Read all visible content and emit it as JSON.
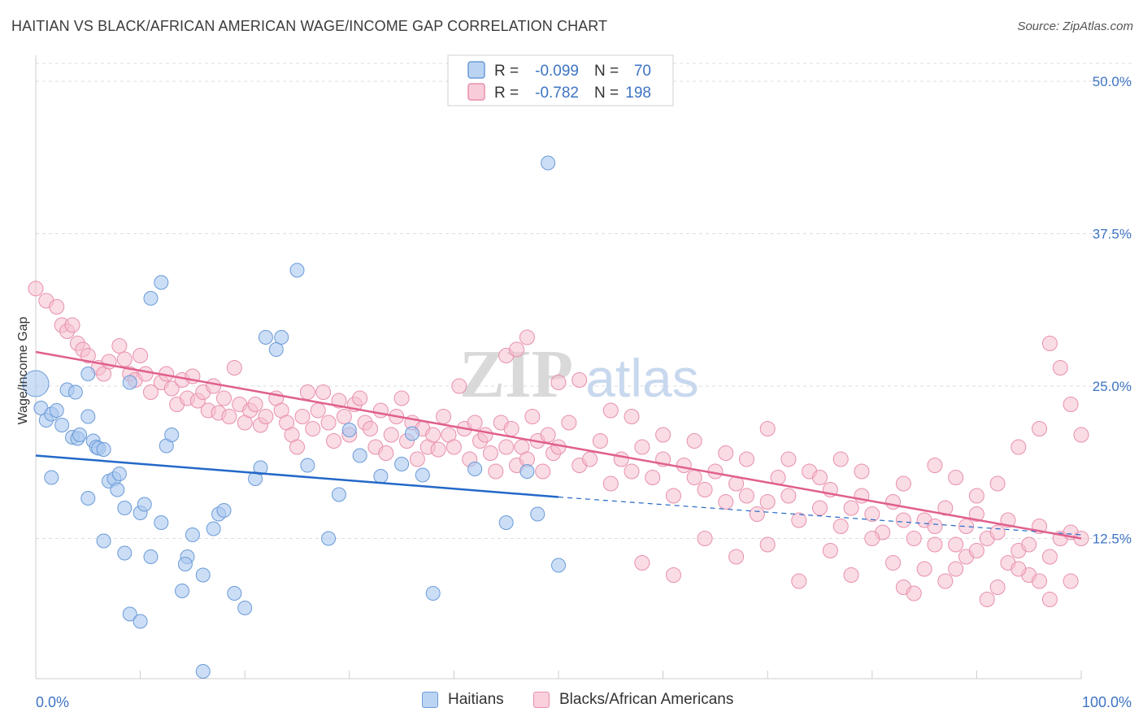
{
  "header": {
    "title": "HAITIAN VS BLACK/AFRICAN AMERICAN WAGE/INCOME GAP CORRELATION CHART",
    "source": "Source: ZipAtlas.com"
  },
  "watermark": {
    "zip": "ZIP",
    "atlas": "atlas"
  },
  "legend_top": {
    "rows": [
      {
        "r_label": "R =",
        "r_value": "-0.099",
        "n_label": "N =",
        "n_value": "70"
      },
      {
        "r_label": "R =",
        "r_value": "-0.782",
        "n_label": "N =",
        "n_value": "198"
      }
    ]
  },
  "legend_bottom": {
    "items": [
      "Haitians",
      "Blacks/African Americans"
    ]
  },
  "chart_data": {
    "type": "scatter",
    "title": "HAITIAN VS BLACK/AFRICAN AMERICAN WAGE/INCOME GAP CORRELATION CHART",
    "xlabel": "",
    "ylabel": "Wage/Income Gap",
    "xlim": [
      0,
      100
    ],
    "ylim": [
      1,
      52
    ],
    "x_tick_labels": [
      {
        "value": 0,
        "label": "0.0%"
      },
      {
        "value": 100,
        "label": "100.0%"
      }
    ],
    "y_ticks": [
      {
        "value": 12.5,
        "label": "12.5%"
      },
      {
        "value": 25.0,
        "label": "25.0%"
      },
      {
        "value": 37.5,
        "label": "37.5%"
      },
      {
        "value": 50.0,
        "label": "50.0%"
      }
    ],
    "grid": true,
    "legend_position": "top-center",
    "colors": {
      "haitians_fill": "#aac8f0",
      "haitians_stroke": "#6a9bd8",
      "haitians_line": "#2468c8",
      "blacks_fill": "#f6bfd0",
      "blacks_stroke": "#e890ac",
      "blacks_line": "#e0608c",
      "tick_label": "#3e74c4",
      "grid": "#dddddd",
      "axis": "#cccccc"
    },
    "series": [
      {
        "name": "Haitians",
        "R": -0.099,
        "N": 70,
        "trend": {
          "x0": 0,
          "y0": 19.3,
          "x1": 50,
          "y1": 15.9,
          "dashed_to_x": 100,
          "dashed_to_y": 12.8
        },
        "points": [
          [
            0,
            25.2
          ],
          [
            0.5,
            23.2
          ],
          [
            1,
            22.2
          ],
          [
            1.5,
            22.7
          ],
          [
            2,
            23.0
          ],
          [
            2.5,
            21.8
          ],
          [
            3,
            24.7
          ],
          [
            3.5,
            20.8
          ],
          [
            3.8,
            24.5
          ],
          [
            4,
            20.7
          ],
          [
            4.2,
            21.0
          ],
          [
            5,
            22.5
          ],
          [
            5,
            26.0
          ],
          [
            5.5,
            20.5
          ],
          [
            5.8,
            20.0
          ],
          [
            6,
            19.9
          ],
          [
            6.5,
            19.8
          ],
          [
            1.5,
            17.5
          ],
          [
            5,
            15.8
          ],
          [
            7,
            17.2
          ],
          [
            7.5,
            17.4
          ],
          [
            7.8,
            16.5
          ],
          [
            8,
            17.8
          ],
          [
            8.5,
            15.0
          ],
          [
            9,
            25.3
          ],
          [
            10,
            14.6
          ],
          [
            10.4,
            15.3
          ],
          [
            11,
            11.0
          ],
          [
            12,
            13.8
          ],
          [
            12.5,
            20.1
          ],
          [
            13,
            21.0
          ],
          [
            14,
            8.2
          ],
          [
            14.5,
            11.0
          ],
          [
            15,
            12.8
          ],
          [
            16,
            9.5
          ],
          [
            17,
            13.3
          ],
          [
            17.5,
            14.5
          ],
          [
            18,
            14.8
          ],
          [
            19,
            8.0
          ],
          [
            20,
            6.8
          ],
          [
            21,
            17.4
          ],
          [
            21.5,
            18.3
          ],
          [
            22,
            29.0
          ],
          [
            23,
            28.0
          ],
          [
            23.5,
            29.0
          ],
          [
            25,
            34.5
          ],
          [
            26,
            18.5
          ],
          [
            28,
            12.5
          ],
          [
            29,
            16.1
          ],
          [
            30,
            21.4
          ],
          [
            31,
            19.3
          ],
          [
            33,
            17.6
          ],
          [
            35,
            18.6
          ],
          [
            36,
            21.1
          ],
          [
            37,
            17.7
          ],
          [
            38,
            8.0
          ],
          [
            42,
            18.2
          ],
          [
            45,
            13.8
          ],
          [
            47,
            18.0
          ],
          [
            48,
            14.5
          ],
          [
            49,
            43.3
          ],
          [
            50,
            10.3
          ],
          [
            9,
            6.3
          ],
          [
            10,
            5.7
          ],
          [
            16,
            1.6
          ],
          [
            11,
            32.2
          ],
          [
            12,
            33.5
          ],
          [
            6.5,
            12.3
          ],
          [
            8.5,
            11.3
          ],
          [
            14.3,
            10.4
          ]
        ]
      },
      {
        "name": "Blacks/African Americans",
        "R": -0.782,
        "N": 198,
        "trend": {
          "x0": 0,
          "y0": 27.8,
          "x1": 100,
          "y1": 12.5
        },
        "points": [
          [
            0,
            33.0
          ],
          [
            1,
            32.0
          ],
          [
            2,
            31.5
          ],
          [
            2.5,
            30.0
          ],
          [
            3,
            29.5
          ],
          [
            3.5,
            30.0
          ],
          [
            4,
            28.5
          ],
          [
            4.5,
            28.0
          ],
          [
            5,
            27.5
          ],
          [
            6,
            26.5
          ],
          [
            6.5,
            26.0
          ],
          [
            7,
            27.0
          ],
          [
            8,
            28.3
          ],
          [
            8.5,
            27.2
          ],
          [
            9,
            26.0
          ],
          [
            9.5,
            25.5
          ],
          [
            10,
            27.5
          ],
          [
            10.5,
            26.0
          ],
          [
            11,
            24.5
          ],
          [
            12,
            25.3
          ],
          [
            12.5,
            26.0
          ],
          [
            13,
            24.8
          ],
          [
            13.5,
            23.5
          ],
          [
            14,
            25.5
          ],
          [
            14.5,
            24.0
          ],
          [
            15,
            25.8
          ],
          [
            15.5,
            23.8
          ],
          [
            16,
            24.5
          ],
          [
            16.5,
            23.0
          ],
          [
            17,
            25.0
          ],
          [
            17.5,
            22.8
          ],
          [
            18,
            24.0
          ],
          [
            18.5,
            22.5
          ],
          [
            19,
            26.5
          ],
          [
            19.5,
            23.5
          ],
          [
            20,
            22.0
          ],
          [
            20.5,
            23.0
          ],
          [
            21,
            23.5
          ],
          [
            21.5,
            21.8
          ],
          [
            22,
            22.5
          ],
          [
            23,
            24.0
          ],
          [
            23.5,
            23.0
          ],
          [
            24,
            22.0
          ],
          [
            24.5,
            21.0
          ],
          [
            25,
            20.0
          ],
          [
            25.5,
            22.5
          ],
          [
            26,
            24.5
          ],
          [
            26.5,
            21.5
          ],
          [
            27,
            23.0
          ],
          [
            27.5,
            24.5
          ],
          [
            28,
            22.0
          ],
          [
            28.5,
            20.5
          ],
          [
            29,
            23.8
          ],
          [
            29.5,
            22.5
          ],
          [
            30,
            21.0
          ],
          [
            30.5,
            23.5
          ],
          [
            31,
            24.0
          ],
          [
            31.5,
            22.0
          ],
          [
            32,
            21.5
          ],
          [
            32.5,
            20.0
          ],
          [
            33,
            23.0
          ],
          [
            33.5,
            19.5
          ],
          [
            34,
            21.0
          ],
          [
            34.5,
            22.5
          ],
          [
            35,
            24.0
          ],
          [
            35.5,
            20.5
          ],
          [
            36,
            22.0
          ],
          [
            36.5,
            19.0
          ],
          [
            37,
            21.5
          ],
          [
            37.5,
            20.0
          ],
          [
            38,
            21.0
          ],
          [
            38.5,
            19.8
          ],
          [
            39,
            22.5
          ],
          [
            39.5,
            21.0
          ],
          [
            40,
            20.0
          ],
          [
            40.5,
            25.0
          ],
          [
            41,
            21.5
          ],
          [
            41.5,
            19.0
          ],
          [
            42,
            22.0
          ],
          [
            42.5,
            20.5
          ],
          [
            43,
            21.0
          ],
          [
            43.5,
            19.5
          ],
          [
            44,
            18.0
          ],
          [
            44.5,
            22.0
          ],
          [
            45,
            20.0
          ],
          [
            45.5,
            21.5
          ],
          [
            46,
            18.5
          ],
          [
            46.5,
            20.0
          ],
          [
            47,
            19.0
          ],
          [
            47.5,
            22.5
          ],
          [
            48,
            20.5
          ],
          [
            48.5,
            18.0
          ],
          [
            49,
            21.0
          ],
          [
            49.5,
            19.5
          ],
          [
            50,
            20.0
          ],
          [
            51,
            22.0
          ],
          [
            52,
            18.5
          ],
          [
            53,
            19.0
          ],
          [
            54,
            20.5
          ],
          [
            55,
            17.0
          ],
          [
            56,
            19.0
          ],
          [
            57,
            18.0
          ],
          [
            58,
            20.0
          ],
          [
            59,
            17.5
          ],
          [
            60,
            19.0
          ],
          [
            61,
            16.0
          ],
          [
            62,
            18.5
          ],
          [
            63,
            17.5
          ],
          [
            64,
            16.5
          ],
          [
            65,
            18.0
          ],
          [
            66,
            15.5
          ],
          [
            67,
            17.0
          ],
          [
            68,
            16.0
          ],
          [
            69,
            14.5
          ],
          [
            70,
            15.5
          ],
          [
            71,
            17.5
          ],
          [
            72,
            16.0
          ],
          [
            73,
            14.0
          ],
          [
            74,
            18.0
          ],
          [
            75,
            15.0
          ],
          [
            76,
            16.5
          ],
          [
            77,
            13.5
          ],
          [
            78,
            15.0
          ],
          [
            79,
            16.0
          ],
          [
            80,
            14.5
          ],
          [
            81,
            13.0
          ],
          [
            82,
            15.5
          ],
          [
            83,
            14.0
          ],
          [
            84,
            12.5
          ],
          [
            85,
            14.0
          ],
          [
            86,
            13.5
          ],
          [
            87,
            15.0
          ],
          [
            88,
            12.0
          ],
          [
            89,
            13.5
          ],
          [
            90,
            14.5
          ],
          [
            91,
            12.5
          ],
          [
            92,
            13.0
          ],
          [
            93,
            14.0
          ],
          [
            94,
            11.5
          ],
          [
            95,
            12.0
          ],
          [
            96,
            13.5
          ],
          [
            97,
            11.0
          ],
          [
            98,
            12.5
          ],
          [
            99,
            13.0
          ],
          [
            100,
            12.5
          ],
          [
            45,
            27.5
          ],
          [
            46,
            28.0
          ],
          [
            47,
            29.0
          ],
          [
            50,
            25.3
          ],
          [
            52,
            25.5
          ],
          [
            55,
            23.0
          ],
          [
            57,
            22.5
          ],
          [
            60,
            21.0
          ],
          [
            63,
            20.5
          ],
          [
            66,
            19.5
          ],
          [
            68,
            19.0
          ],
          [
            70,
            21.5
          ],
          [
            72,
            19.0
          ],
          [
            75,
            17.5
          ],
          [
            77,
            19.0
          ],
          [
            79,
            18.0
          ],
          [
            83,
            17.0
          ],
          [
            86,
            18.5
          ],
          [
            88,
            17.5
          ],
          [
            90,
            16.0
          ],
          [
            92,
            17.0
          ],
          [
            94,
            20.0
          ],
          [
            96,
            21.5
          ],
          [
            97,
            28.5
          ],
          [
            98,
            26.5
          ],
          [
            99,
            23.5
          ],
          [
            100,
            21.0
          ],
          [
            73,
            9.0
          ],
          [
            76,
            11.5
          ],
          [
            78,
            9.5
          ],
          [
            83,
            8.5
          ],
          [
            85,
            10.0
          ],
          [
            87,
            9.0
          ],
          [
            89,
            11.0
          ],
          [
            91,
            7.5
          ],
          [
            93,
            10.5
          ],
          [
            95,
            9.5
          ],
          [
            97,
            7.5
          ],
          [
            99,
            9.0
          ],
          [
            58,
            10.5
          ],
          [
            61,
            9.5
          ],
          [
            64,
            12.5
          ],
          [
            67,
            11.0
          ],
          [
            70,
            12.0
          ],
          [
            80,
            12.5
          ],
          [
            82,
            10.5
          ],
          [
            84,
            8.0
          ],
          [
            86,
            12.0
          ],
          [
            88,
            10.0
          ],
          [
            90,
            11.5
          ],
          [
            92,
            8.5
          ],
          [
            94,
            10.0
          ],
          [
            96,
            9.0
          ]
        ]
      }
    ]
  }
}
